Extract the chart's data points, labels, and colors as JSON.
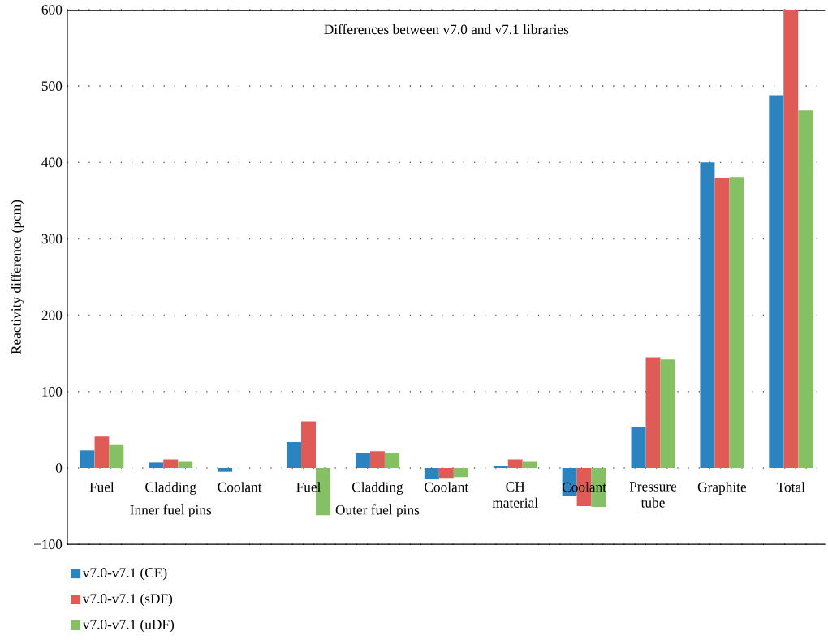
{
  "chart_data": {
    "type": "bar",
    "title": "Differences between v7.0 and v7.1 libraries",
    "ylabel": "Reactivity difference (pcm)",
    "categories": [
      "Fuel",
      "Cladding",
      "Coolant",
      "Fuel",
      "Cladding",
      "Coolant",
      "CH material",
      "Coolant",
      "Pressure tube",
      "Graphite",
      "Total"
    ],
    "series": [
      {
        "name": "v7.0-v7.1 (CE)",
        "color": "#2b83c0",
        "values": [
          23,
          7,
          -5,
          34,
          20,
          -15,
          3,
          -37,
          54,
          400,
          488
        ]
      },
      {
        "name": "v7.0-v7.1 (sDF)",
        "color": "#e05a56",
        "values": [
          41,
          11,
          0,
          61,
          22,
          -13,
          11,
          -50,
          145,
          380,
          600
        ]
      },
      {
        "name": "v7.0-v7.1 (uDF)",
        "color": "#86c065",
        "values": [
          30,
          9,
          0,
          -62,
          20,
          -12,
          9,
          -51,
          142,
          381,
          468
        ]
      }
    ],
    "ylim": [
      -100,
      600
    ],
    "yticks": [
      {
        "value": -100,
        "label": "−100"
      },
      0,
      100,
      200,
      300,
      400,
      500,
      600
    ],
    "grid": "y",
    "legend": "bottom left",
    "annotations": [
      "Inner fuel pins",
      "Outer fuel pins"
    ]
  }
}
